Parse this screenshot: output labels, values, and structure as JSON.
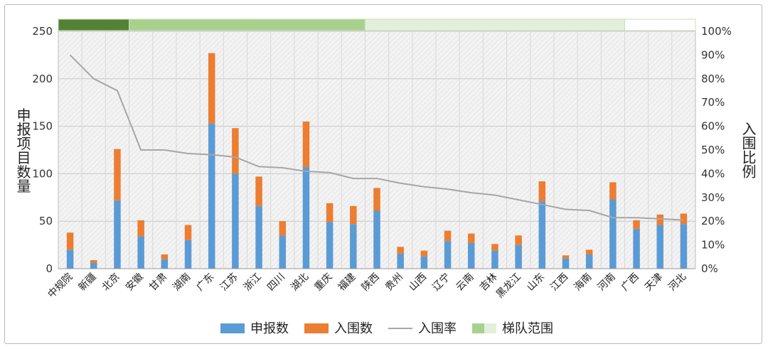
{
  "chart_data": {
    "type": "bar",
    "stacked": true,
    "categories": [
      "中规院",
      "新疆",
      "北京",
      "安徽",
      "甘肃",
      "湖南",
      "广东",
      "江苏",
      "浙江",
      "四川",
      "湖北",
      "重庆",
      "福建",
      "陕西",
      "贵州",
      "山西",
      "辽宁",
      "云南",
      "吉林",
      "黑龙江",
      "山东",
      "江西",
      "海南",
      "河南",
      "广西",
      "天津",
      "河北"
    ],
    "series": [
      {
        "name": "申报数",
        "color": "#5b9bd5",
        "axis": "left",
        "values": [
          20,
          6,
          72,
          34,
          10,
          30,
          153,
          100,
          66,
          35,
          107,
          49,
          47,
          61,
          16,
          13,
          29,
          27,
          19,
          25,
          71,
          11,
          15,
          73,
          42,
          46,
          47
        ]
      },
      {
        "name": "入围数",
        "color": "#ed7d31",
        "axis": "left",
        "values": [
          18,
          3,
          54,
          17,
          5,
          16,
          74,
          48,
          31,
          15,
          48,
          20,
          19,
          24,
          7,
          6,
          11,
          10,
          7,
          10,
          21,
          3,
          5,
          18,
          9,
          11,
          11
        ]
      },
      {
        "name": "入围率",
        "type": "line",
        "color": "#a6a6a6",
        "axis": "right",
        "values": [
          90,
          80,
          75,
          50,
          50,
          48.5,
          48,
          47,
          43,
          42.5,
          41,
          40.5,
          38,
          38,
          36,
          34.5,
          33.5,
          32,
          31,
          29,
          27,
          25,
          24.5,
          21.5,
          21.5,
          21,
          20.5
        ]
      }
    ],
    "bands": {
      "name": "梯队范围",
      "segments": [
        {
          "from": 0,
          "to": 3,
          "color": "#548235"
        },
        {
          "from": 3,
          "to": 13,
          "color": "#a9d18e"
        },
        {
          "from": 13,
          "to": 24,
          "color": "#e2f0d9"
        },
        {
          "from": 24,
          "to": 27,
          "color": "#ffffff"
        }
      ]
    },
    "ylabel": "申报项目数量",
    "y2label": "入围比例",
    "ylim": [
      0,
      250
    ],
    "y2lim": [
      0,
      100
    ],
    "yticks": [
      0,
      50,
      100,
      150,
      200,
      250
    ],
    "y2ticks": [
      "0%",
      "10%",
      "20%",
      "30%",
      "40%",
      "50%",
      "60%",
      "70%",
      "80%",
      "90%",
      "100%"
    ],
    "legend": [
      {
        "label": "申报数",
        "swatch": "bar",
        "color": "#5b9bd5"
      },
      {
        "label": "入围数",
        "swatch": "bar",
        "color": "#ed7d31"
      },
      {
        "label": "入围率",
        "swatch": "line",
        "color": "#a6a6a6"
      },
      {
        "label": "梯队范围",
        "swatch": "band",
        "color": "#a9d18e",
        "color2": "#e2f0d9"
      }
    ],
    "legend_position": "bottom"
  }
}
